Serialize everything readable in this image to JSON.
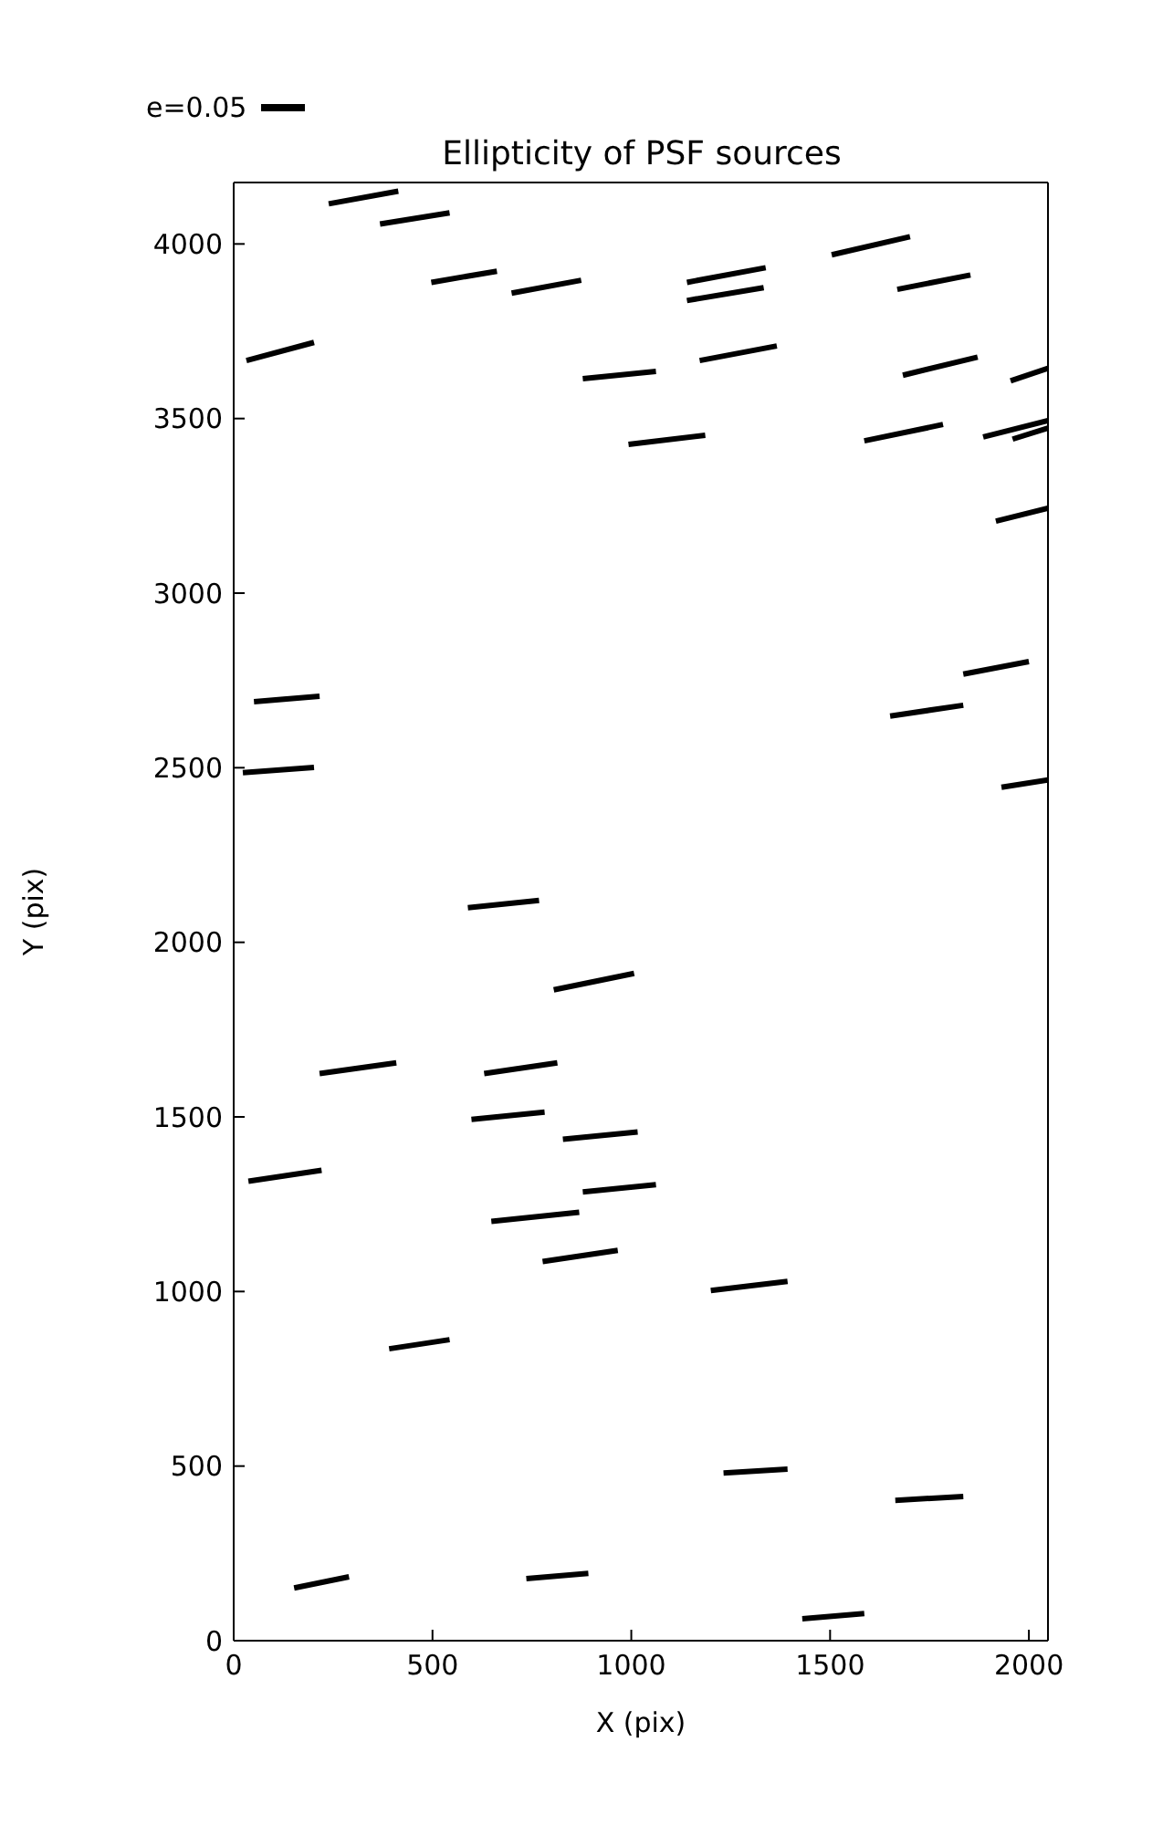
{
  "chart_data": {
    "type": "line",
    "title": "Ellipticity of PSF sources",
    "xlabel": "X (pix)",
    "ylabel": "Y (pix)",
    "annotations": [
      "e=0.05"
    ],
    "xlim": [
      0,
      2048
    ],
    "xticks": [
      0,
      500,
      1000,
      1500,
      2000
    ],
    "ylim": [
      0,
      4176
    ],
    "yticks": [
      0,
      500,
      1000,
      1500,
      2000,
      2500,
      3000,
      3500,
      4000
    ],
    "grid": false,
    "marker": "none",
    "line_style": "solid",
    "series": [
      {
        "color": "#000000",
        "x": [
          239,
          414
        ],
        "values": [
          4115,
          4151
        ]
      },
      {
        "color": "#000000",
        "x": [
          368,
          543
        ],
        "values": [
          4057,
          4089
        ]
      },
      {
        "color": "#000000",
        "x": [
          497,
          662
        ],
        "values": [
          3890,
          3922
        ]
      },
      {
        "color": "#000000",
        "x": [
          699,
          874
        ],
        "values": [
          3859,
          3896
        ]
      },
      {
        "color": "#000000",
        "x": [
          1140,
          1338
        ],
        "values": [
          3890,
          3932
        ]
      },
      {
        "color": "#000000",
        "x": [
          1140,
          1333
        ],
        "values": [
          3838,
          3875
        ]
      },
      {
        "color": "#000000",
        "x": [
          1504,
          1701
        ],
        "values": [
          3969,
          4021
        ]
      },
      {
        "color": "#000000",
        "x": [
          1669,
          1853
        ],
        "values": [
          3870,
          3911
        ]
      },
      {
        "color": "#000000",
        "x": [
          32,
          202
        ],
        "values": [
          3666,
          3718
        ]
      },
      {
        "color": "#000000",
        "x": [
          878,
          1062
        ],
        "values": [
          3614,
          3635
        ]
      },
      {
        "color": "#000000",
        "x": [
          1172,
          1366
        ],
        "values": [
          3666,
          3708
        ]
      },
      {
        "color": "#000000",
        "x": [
          1683,
          1871
        ],
        "values": [
          3624,
          3676
        ]
      },
      {
        "color": "#000000",
        "x": [
          1954,
          2048
        ],
        "values": [
          3608,
          3644
        ]
      },
      {
        "color": "#000000",
        "x": [
          993,
          1186
        ],
        "values": [
          3426,
          3452
        ]
      },
      {
        "color": "#000000",
        "x": [
          1586,
          1784
        ],
        "values": [
          3436,
          3483
        ]
      },
      {
        "color": "#000000",
        "x": [
          1885,
          2048
        ],
        "values": [
          3447,
          3494
        ]
      },
      {
        "color": "#000000",
        "x": [
          1959,
          2048
        ],
        "values": [
          3441,
          3473
        ]
      },
      {
        "color": "#000000",
        "x": [
          1917,
          2048
        ],
        "values": [
          3206,
          3243
        ]
      },
      {
        "color": "#000000",
        "x": [
          51,
          216
        ],
        "values": [
          2689,
          2705
        ]
      },
      {
        "color": "#000000",
        "x": [
          1835,
          2000
        ],
        "values": [
          2768,
          2804
        ]
      },
      {
        "color": "#000000",
        "x": [
          1651,
          1835
        ],
        "values": [
          2648,
          2679
        ]
      },
      {
        "color": "#000000",
        "x": [
          23,
          202
        ],
        "values": [
          2486,
          2501
        ]
      },
      {
        "color": "#000000",
        "x": [
          1931,
          2048
        ],
        "values": [
          2444,
          2465
        ]
      },
      {
        "color": "#000000",
        "x": [
          589,
          768
        ],
        "values": [
          2099,
          2120
        ]
      },
      {
        "color": "#000000",
        "x": [
          805,
          1007
        ],
        "values": [
          1864,
          1911
        ]
      },
      {
        "color": "#000000",
        "x": [
          216,
          409
        ],
        "values": [
          1624,
          1655
        ]
      },
      {
        "color": "#000000",
        "x": [
          630,
          814
        ],
        "values": [
          1624,
          1655
        ]
      },
      {
        "color": "#000000",
        "x": [
          598,
          782
        ],
        "values": [
          1493,
          1514
        ]
      },
      {
        "color": "#000000",
        "x": [
          828,
          1016
        ],
        "values": [
          1436,
          1457
        ]
      },
      {
        "color": "#000000",
        "x": [
          37,
          221
        ],
        "values": [
          1316,
          1347
        ]
      },
      {
        "color": "#000000",
        "x": [
          878,
          1062
        ],
        "values": [
          1285,
          1306
        ]
      },
      {
        "color": "#000000",
        "x": [
          648,
          869
        ],
        "values": [
          1201,
          1227
        ]
      },
      {
        "color": "#000000",
        "x": [
          777,
          966
        ],
        "values": [
          1086,
          1118
        ]
      },
      {
        "color": "#000000",
        "x": [
          1200,
          1393
        ],
        "values": [
          1003,
          1029
        ]
      },
      {
        "color": "#000000",
        "x": [
          391,
          543
        ],
        "values": [
          836,
          862
        ]
      },
      {
        "color": "#000000",
        "x": [
          1232,
          1393
        ],
        "values": [
          480,
          491
        ]
      },
      {
        "color": "#000000",
        "x": [
          1664,
          1835
        ],
        "values": [
          402,
          413
        ]
      },
      {
        "color": "#000000",
        "x": [
          152,
          290
        ],
        "values": [
          151,
          183
        ]
      },
      {
        "color": "#000000",
        "x": [
          736,
          892
        ],
        "values": [
          178,
          193
        ]
      },
      {
        "color": "#000000",
        "x": [
          1430,
          1586
        ],
        "values": [
          63,
          78
        ]
      }
    ]
  }
}
